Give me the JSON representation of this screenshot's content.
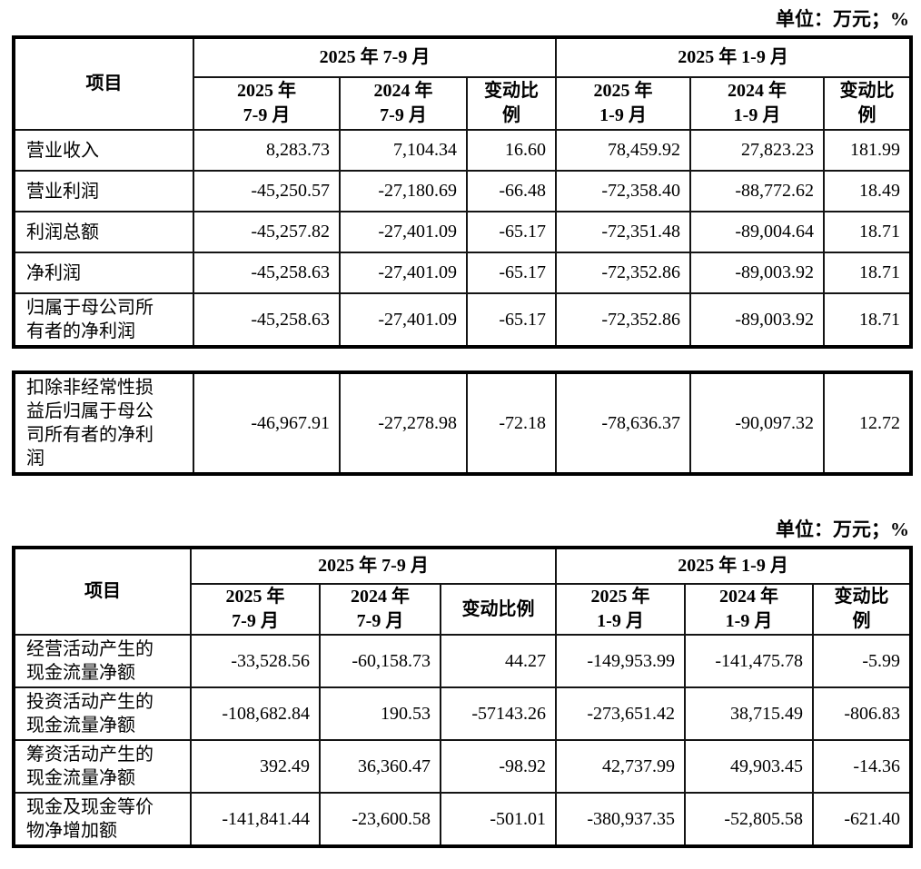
{
  "page": {
    "unit_label": "单位：万元；%"
  },
  "table1": {
    "item_header": "项目",
    "group_headers": [
      "2025 年 7-9 月",
      "2025 年 1-9 月"
    ],
    "sub_headers": [
      "2025 年\n7-9 月",
      "2024 年\n7-9 月",
      "变动比\n例",
      "2025 年\n1-9 月",
      "2024 年\n1-9 月",
      "变动比\n例"
    ],
    "rows": [
      {
        "label": "营业收入",
        "values": [
          "8,283.73",
          "7,104.34",
          "16.60",
          "78,459.92",
          "27,823.23",
          "181.99"
        ]
      },
      {
        "label": "营业利润",
        "values": [
          "-45,250.57",
          "-27,180.69",
          "-66.48",
          "-72,358.40",
          "-88,772.62",
          "18.49"
        ]
      },
      {
        "label": "利润总额",
        "values": [
          "-45,257.82",
          "-27,401.09",
          "-65.17",
          "-72,351.48",
          "-89,004.64",
          "18.71"
        ]
      },
      {
        "label": "净利润",
        "values": [
          "-45,258.63",
          "-27,401.09",
          "-65.17",
          "-72,352.86",
          "-89,003.92",
          "18.71"
        ]
      },
      {
        "label": "归属于母公司所\n有者的净利润",
        "values": [
          "-45,258.63",
          "-27,401.09",
          "-65.17",
          "-72,352.86",
          "-89,003.92",
          "18.71"
        ]
      }
    ]
  },
  "table1_supplement": {
    "rows": [
      {
        "label": "扣除非经常性损\n益后归属于母公\n司所有者的净利\n润",
        "values": [
          "-46,967.91",
          "-27,278.98",
          "-72.18",
          "-78,636.37",
          "-90,097.32",
          "12.72"
        ]
      }
    ]
  },
  "table2": {
    "item_header": "项目",
    "group_headers": [
      "2025 年 7-9 月",
      "2025 年 1-9 月"
    ],
    "sub_headers": [
      "2025 年\n7-9 月",
      "2024 年\n7-9 月",
      "变动比例",
      "2025 年\n1-9 月",
      "2024 年\n1-9 月",
      "变动比\n例"
    ],
    "rows": [
      {
        "label": "经营活动产生的\n现金流量净额",
        "values": [
          "-33,528.56",
          "-60,158.73",
          "44.27",
          "-149,953.99",
          "-141,475.78",
          "-5.99"
        ]
      },
      {
        "label": "投资活动产生的\n现金流量净额",
        "values": [
          "-108,682.84",
          "190.53",
          "-57143.26",
          "-273,651.42",
          "38,715.49",
          "-806.83"
        ]
      },
      {
        "label": "筹资活动产生的\n现金流量净额",
        "values": [
          "392.49",
          "36,360.47",
          "-98.92",
          "42,737.99",
          "49,903.45",
          "-14.36"
        ]
      },
      {
        "label": "现金及现金等价\n物净增加额",
        "values": [
          "-141,841.44",
          "-23,600.58",
          "-501.01",
          "-380,937.35",
          "-52,805.58",
          "-621.40"
        ]
      }
    ]
  }
}
